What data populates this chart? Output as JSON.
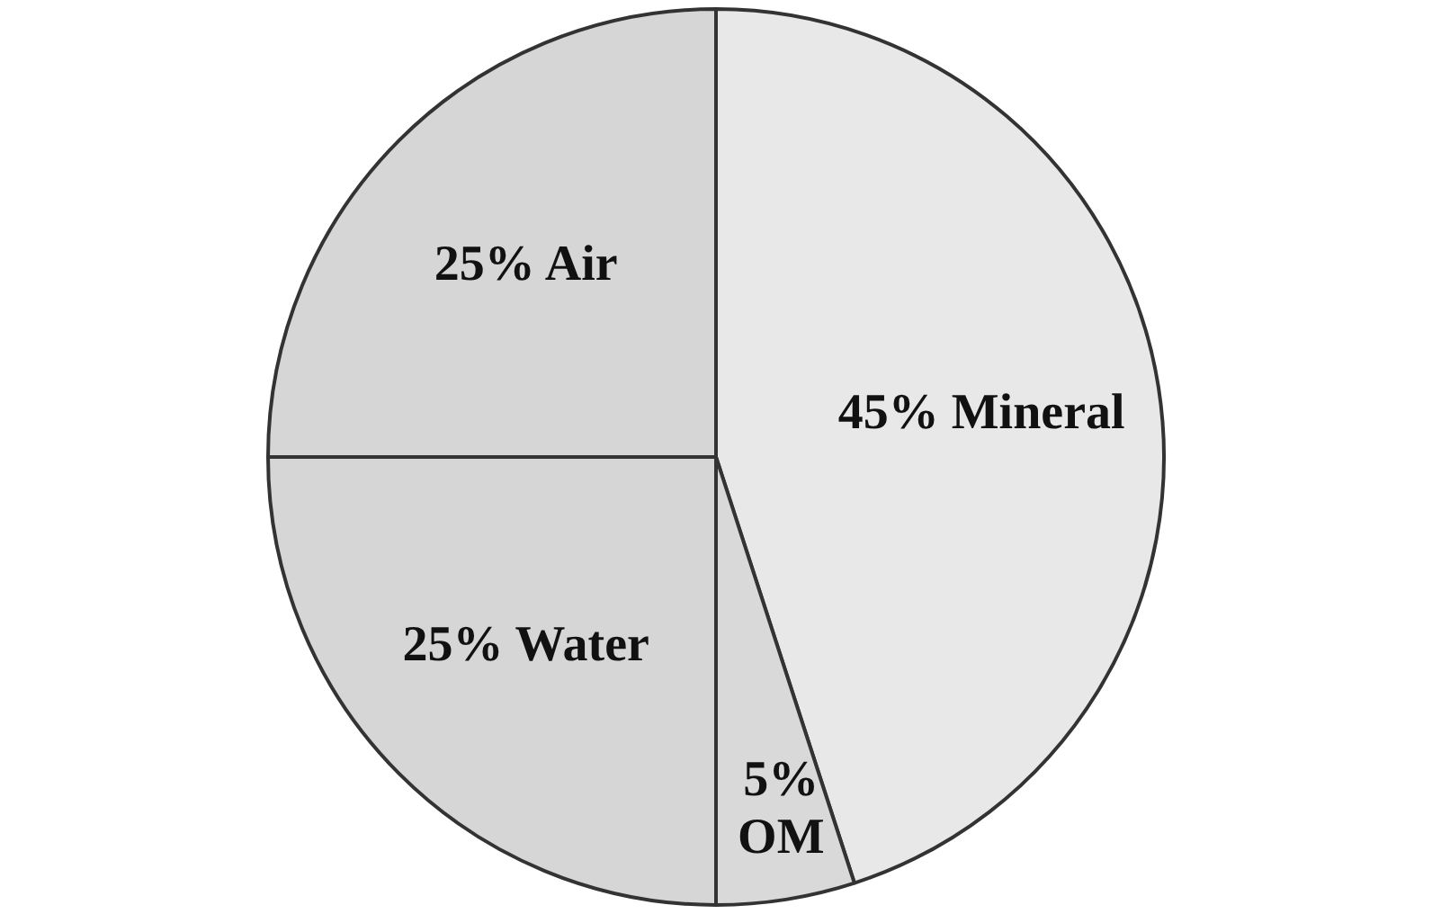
{
  "chart_data": {
    "type": "pie",
    "categories": [
      "Mineral",
      "OM",
      "Water",
      "Air"
    ],
    "values": [
      45,
      5,
      25,
      25
    ],
    "value_labels": [
      "45%",
      "5%",
      "25%",
      "25%"
    ],
    "colors": [
      "#e8e8e8",
      "#d9d9d9",
      "#d6d6d6",
      "#d6d6d6"
    ],
    "legend": false
  }
}
